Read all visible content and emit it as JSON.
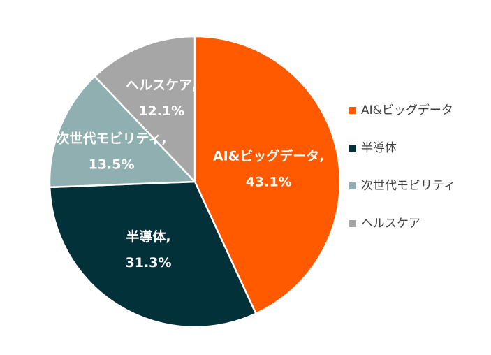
{
  "chart_data": {
    "type": "pie",
    "categories": [
      "AI&ビッグデータ",
      "半導体",
      "次世代モビリティ",
      "ヘルスケア"
    ],
    "values": [
      43.1,
      31.3,
      13.5,
      12.1
    ],
    "slice_labels": [
      {
        "name": "AI&ビッグデータ,",
        "value": "43.1%"
      },
      {
        "name": "半導体,",
        "value": "31.3%"
      },
      {
        "name": "次世代モビリティ,",
        "value": "13.5%"
      },
      {
        "name": "ヘルスケア,",
        "value": "12.1%"
      }
    ],
    "colors": [
      "#ff5a00",
      "#03313a",
      "#8fafb0",
      "#a6a6a6"
    ],
    "legend_position": "right",
    "start_angle": "12 o'clock",
    "direction": "clockwise"
  }
}
